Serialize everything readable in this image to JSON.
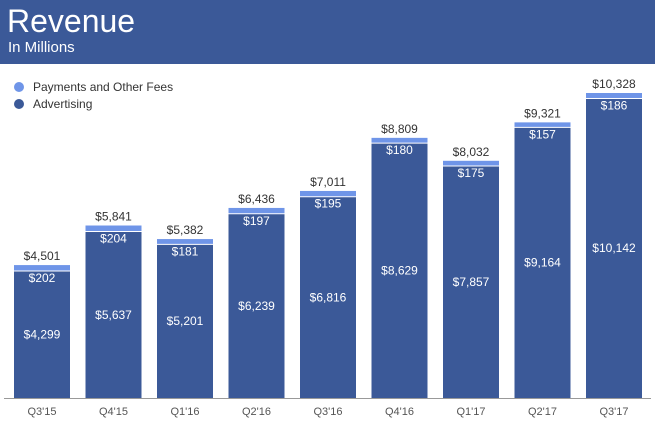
{
  "header": {
    "title": "Revenue",
    "subtitle": "In Millions"
  },
  "colors": {
    "header_bg": "#3b5998",
    "advertising": "#3b5998",
    "payments": "#6f95e8",
    "axis": "#999999"
  },
  "chart_data": {
    "type": "bar",
    "stacked": true,
    "title": "Revenue",
    "subtitle": "In Millions",
    "categories": [
      "Q3'15",
      "Q4'15",
      "Q1'16",
      "Q2'16",
      "Q3'16",
      "Q4'16",
      "Q1'17",
      "Q2'17",
      "Q3'17"
    ],
    "series": [
      {
        "name": "Advertising",
        "values": [
          4299,
          5637,
          5201,
          6239,
          6816,
          8629,
          7857,
          9164,
          10142
        ],
        "labels": [
          "$4,299",
          "$5,637",
          "$5,201",
          "$6,239",
          "$6,816",
          "$8,629",
          "$7,857",
          "$9,164",
          "$10,142"
        ]
      },
      {
        "name": "Payments and Other Fees",
        "values": [
          202,
          204,
          181,
          197,
          195,
          180,
          175,
          157,
          186
        ],
        "labels": [
          "$202",
          "$204",
          "$181",
          "$197",
          "$195",
          "$180",
          "$175",
          "$157",
          "$186"
        ]
      }
    ],
    "totals": [
      4501,
      5841,
      5382,
      6436,
      7011,
      8809,
      8032,
      9321,
      10328
    ],
    "total_labels": [
      "$4,501",
      "$5,841",
      "$5,382",
      "$6,436",
      "$7,011",
      "$8,809",
      "$8,032",
      "$9,321",
      "$10,328"
    ],
    "ylim": [
      0,
      10328
    ],
    "legend_position": "top-left",
    "grid": false
  }
}
